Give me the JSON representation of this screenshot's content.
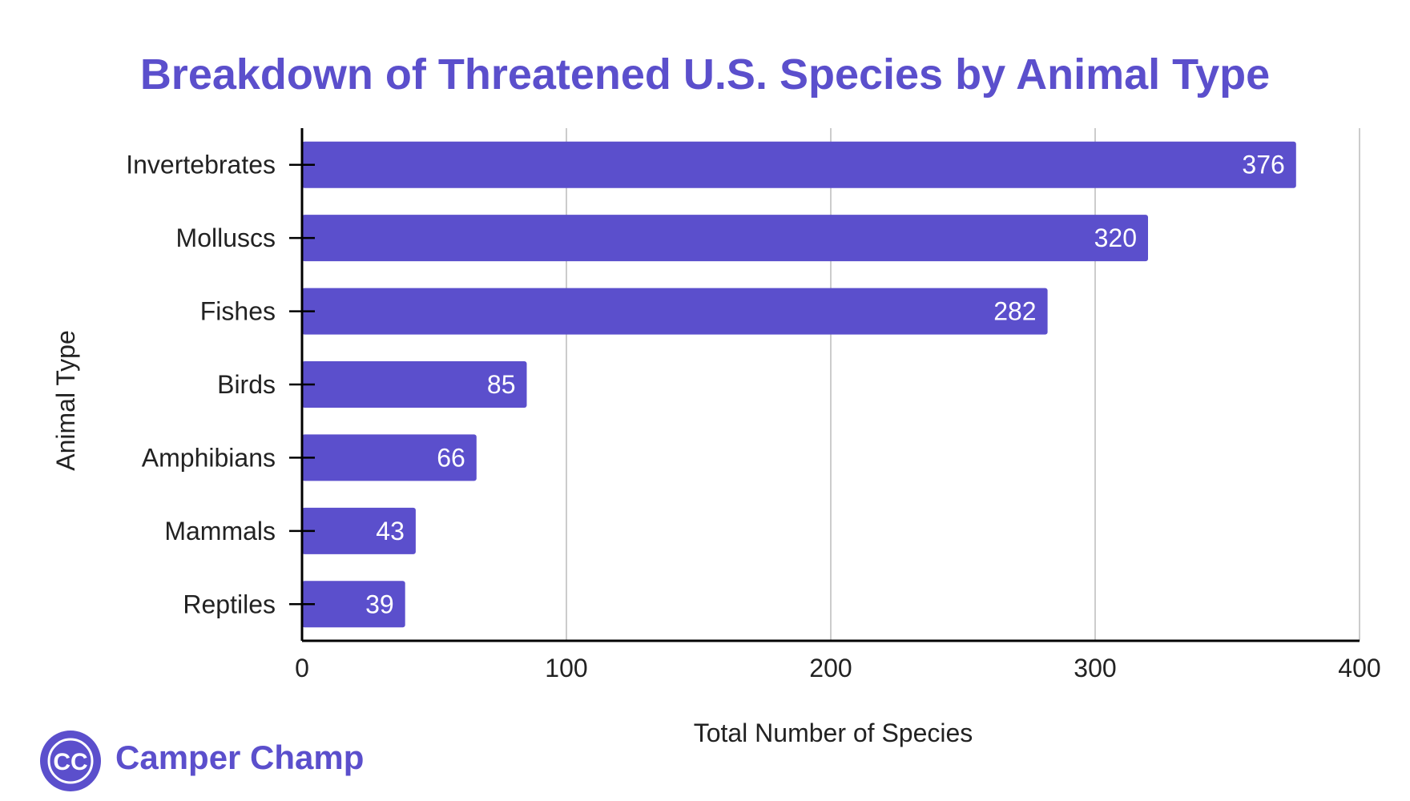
{
  "chart_data": {
    "type": "bar",
    "orientation": "horizontal",
    "title": "Breakdown of Threatened U.S. Species by Animal Type",
    "xlabel": "Total Number of Species",
    "ylabel": "Animal Type",
    "categories": [
      "Invertebrates",
      "Molluscs",
      "Fishes",
      "Birds",
      "Amphibians",
      "Mammals",
      "Reptiles"
    ],
    "values": [
      376,
      320,
      282,
      85,
      66,
      43,
      39
    ],
    "data_labels": [
      "376",
      "320",
      "282",
      "85",
      "66",
      "43",
      "39"
    ],
    "xlim": [
      0,
      400
    ],
    "xticks": [
      0,
      100,
      200,
      300,
      400
    ],
    "xtick_labels": [
      "0",
      "100",
      "200",
      "300",
      "400"
    ],
    "grid": "vertical",
    "bar_color": "#5b4fcc"
  },
  "branding": {
    "logo_text": "CC",
    "name": "Camper Champ",
    "logo_icon": "camper-champ-logo-icon"
  },
  "colors": {
    "accent": "#5b4fcc",
    "grid": "#cccccc",
    "axis": "#000000",
    "text": "#222222",
    "label_text": "#ffffff"
  }
}
